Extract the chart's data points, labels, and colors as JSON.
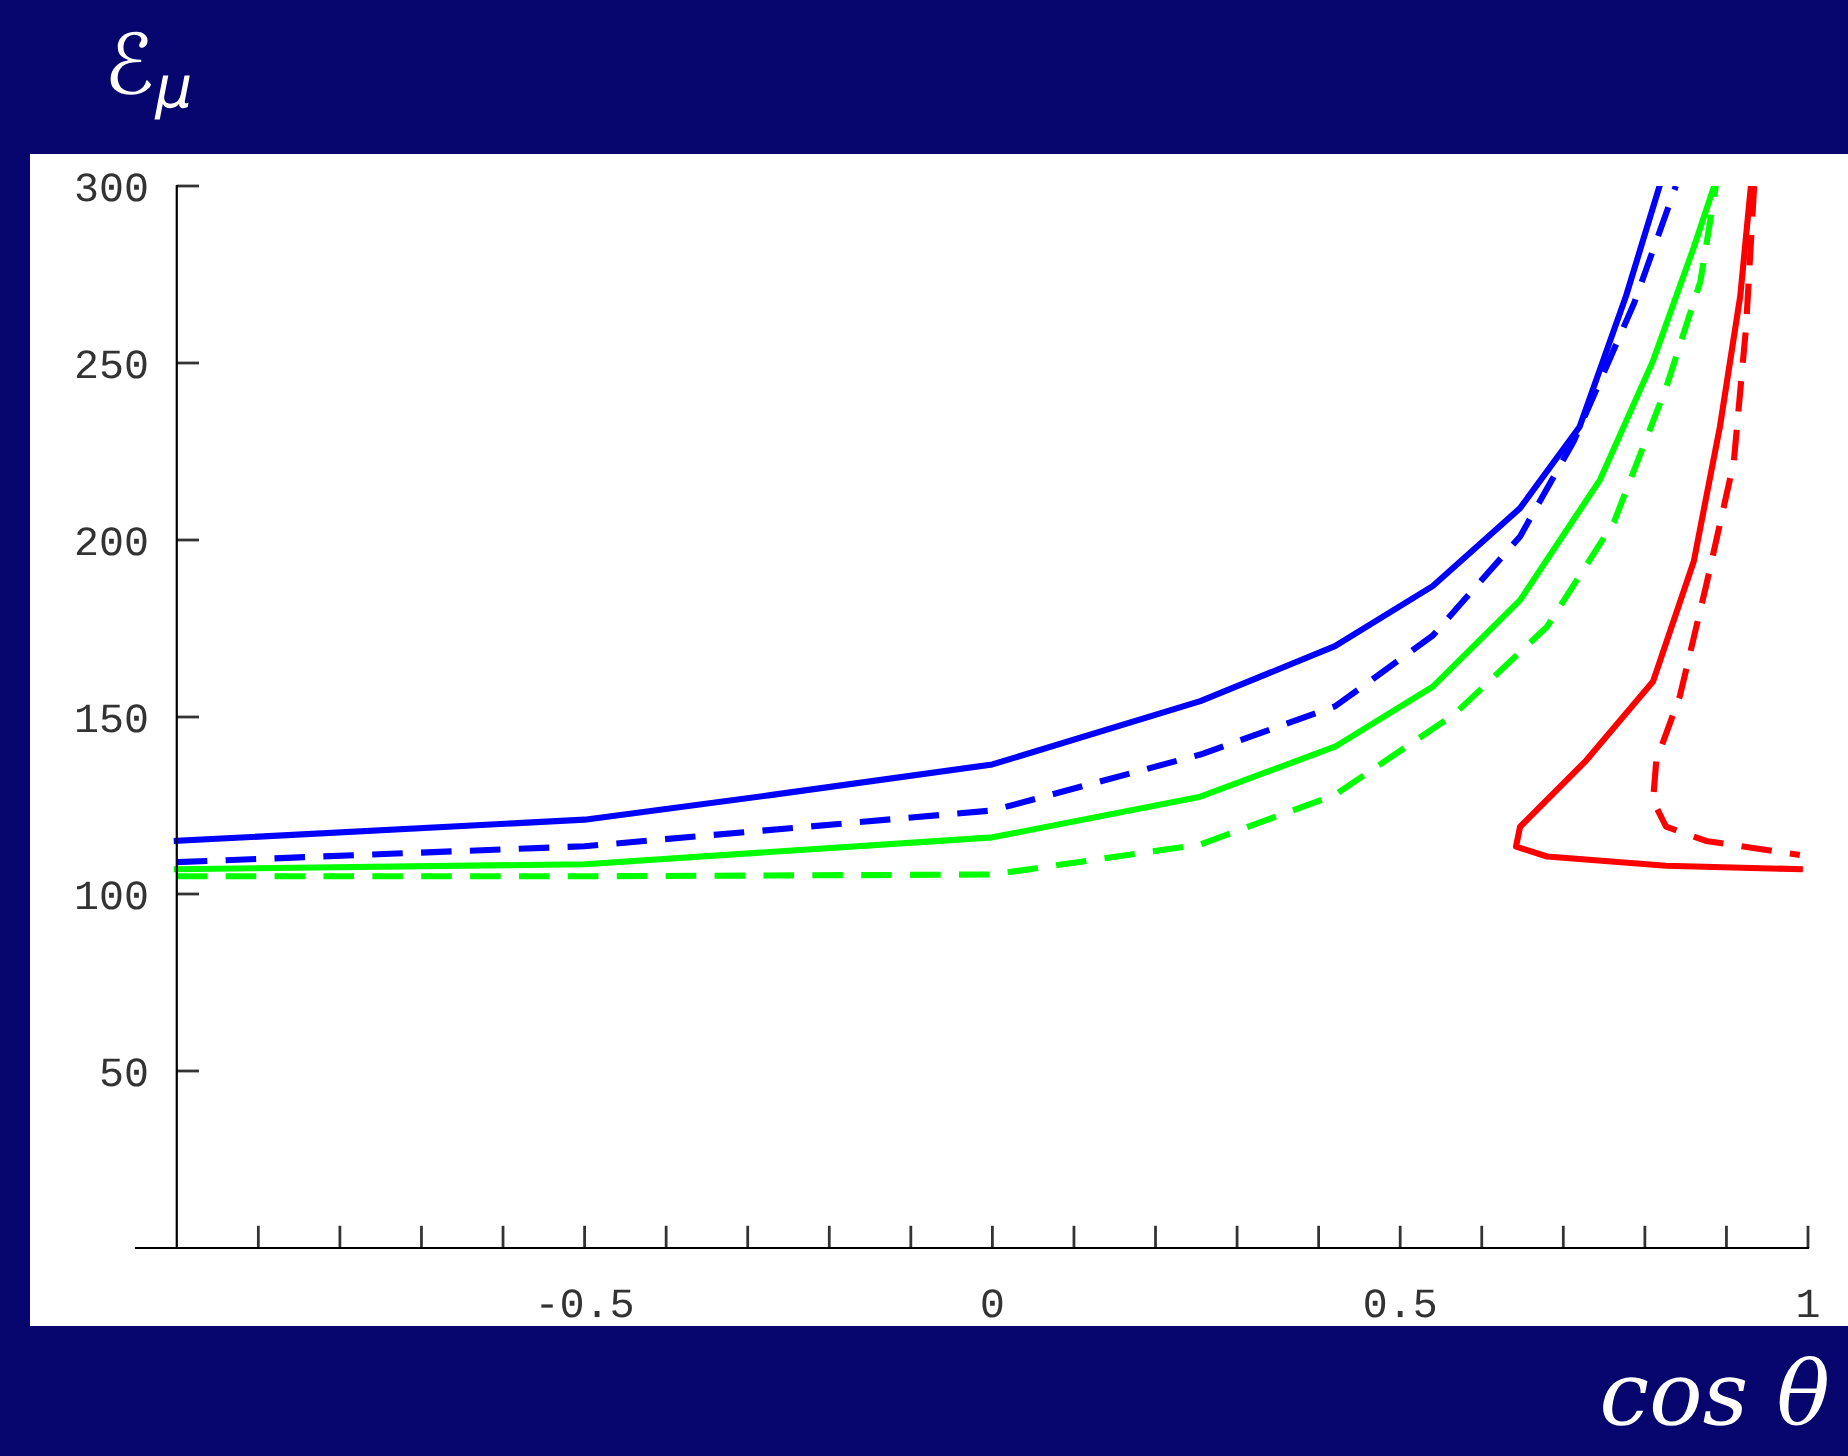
{
  "chart_data": {
    "type": "line",
    "xlabel": "cos θ",
    "ylabel": "ℰ$_{μ}$",
    "xlim": [
      -1.05,
      1.0
    ],
    "ylim": [
      0,
      300
    ],
    "xticks": [
      {
        "value": -0.9,
        "label": null
      },
      {
        "value": -0.8,
        "label": null
      },
      {
        "value": -0.7,
        "label": null
      },
      {
        "value": -0.6,
        "label": null
      },
      {
        "value": -0.5,
        "label": "-0.5"
      },
      {
        "value": -0.4,
        "label": null
      },
      {
        "value": -0.3,
        "label": null
      },
      {
        "value": -0.2,
        "label": null
      },
      {
        "value": -0.1,
        "label": null
      },
      0,
      {
        "value": 0.1,
        "label": null
      },
      {
        "value": 0.2,
        "label": null
      },
      {
        "value": 0.3,
        "label": null
      },
      {
        "value": 0.4,
        "label": null
      },
      {
        "value": 0.5,
        "label": "0.5"
      },
      {
        "value": 0.6,
        "label": null
      },
      {
        "value": 0.7,
        "label": null
      },
      {
        "value": 0.8,
        "label": null
      },
      {
        "value": 0.9,
        "label": null
      },
      1
    ],
    "yticks": [
      50,
      100,
      150,
      200,
      250,
      300
    ],
    "grid": false,
    "marker": "none",
    "series": [
      {
        "color": "#0000ff",
        "line_style": "solid",
        "x": [
          -1,
          -0.5,
          -0.27,
          0,
          0.255,
          0.42,
          0.54,
          0.647,
          0.72,
          0.777,
          0.818
        ],
        "values": [
          115,
          121,
          128,
          136.6,
          154.5,
          170,
          187,
          209,
          232,
          269,
          300
        ]
      },
      {
        "color": "#0000ff",
        "line_style": "dashed",
        "x": [
          -1,
          -0.5,
          0,
          0.255,
          0.42,
          0.54,
          0.647,
          0.713,
          0.787,
          0.838
        ],
        "values": [
          109,
          113.5,
          123.6,
          139.4,
          153,
          173,
          201,
          228,
          267,
          300
        ]
      },
      {
        "color": "#00ff00",
        "line_style": "solid",
        "x": [
          -1,
          -0.5,
          0,
          0.255,
          0.42,
          0.54,
          0.647,
          0.745,
          0.81,
          0.86,
          0.885
        ],
        "values": [
          107,
          108.4,
          116,
          127.5,
          141.6,
          158.6,
          183,
          217,
          250.6,
          282.7,
          300
        ]
      },
      {
        "color": "#00ff00",
        "line_style": "dashed",
        "x": [
          -1,
          -0.5,
          0,
          0.255,
          0.42,
          0.566,
          0.68,
          0.762,
          0.826,
          0.868,
          0.887
        ],
        "values": [
          105,
          105,
          105.5,
          114,
          128,
          150.7,
          175.5,
          205,
          243,
          273,
          300
        ]
      },
      {
        "color": "#ff0000",
        "line_style": "solid",
        "x": [
          0.93,
          0.917,
          0.892,
          0.86,
          0.81,
          0.728,
          0.647,
          0.642,
          0.68,
          0.826,
          0.99
        ],
        "values": [
          300,
          269,
          232,
          194,
          160,
          137.7,
          119,
          113.4,
          110.6,
          108,
          107
        ]
      },
      {
        "color": "#ff0000",
        "line_style": "dashed",
        "x": [
          0.934,
          0.924,
          0.909,
          0.875,
          0.843,
          0.814,
          0.81,
          0.826,
          0.875,
          0.99
        ],
        "values": [
          300,
          260,
          222,
          187,
          156,
          137.7,
          126.4,
          119,
          115,
          111
        ]
      }
    ]
  }
}
